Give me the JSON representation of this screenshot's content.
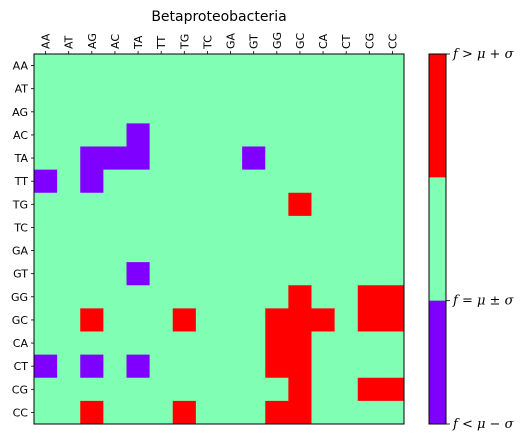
{
  "chart_data": {
    "type": "heatmap",
    "title": "Betaproteobacteria",
    "x_categories": [
      "AA",
      "AT",
      "AG",
      "AC",
      "TA",
      "TT",
      "TG",
      "TC",
      "GA",
      "GT",
      "GG",
      "GC",
      "CA",
      "CT",
      "CG",
      "CC"
    ],
    "y_categories": [
      "AA",
      "AT",
      "AG",
      "AC",
      "TA",
      "TT",
      "TG",
      "TC",
      "GA",
      "GT",
      "GG",
      "GC",
      "CA",
      "CT",
      "CG",
      "CC"
    ],
    "level_codes": {
      "-1": "f < μ − σ",
      "0": "f = μ ± σ",
      "1": "f > μ + σ"
    },
    "colors": {
      "low": "#8000ff",
      "mid": "#80ffb4",
      "high": "#ff0000"
    },
    "values": [
      [
        0,
        0,
        0,
        0,
        0,
        0,
        0,
        0,
        0,
        0,
        0,
        0,
        0,
        0,
        0,
        0
      ],
      [
        0,
        0,
        0,
        0,
        0,
        0,
        0,
        0,
        0,
        0,
        0,
        0,
        0,
        0,
        0,
        0
      ],
      [
        0,
        0,
        0,
        0,
        0,
        0,
        0,
        0,
        0,
        0,
        0,
        0,
        0,
        0,
        0,
        0
      ],
      [
        0,
        0,
        0,
        0,
        -1,
        0,
        0,
        0,
        0,
        0,
        0,
        0,
        0,
        0,
        0,
        0
      ],
      [
        0,
        0,
        -1,
        -1,
        -1,
        0,
        0,
        0,
        0,
        -1,
        0,
        0,
        0,
        0,
        0,
        0
      ],
      [
        -1,
        0,
        -1,
        0,
        0,
        0,
        0,
        0,
        0,
        0,
        0,
        0,
        0,
        0,
        0,
        0
      ],
      [
        0,
        0,
        0,
        0,
        0,
        0,
        0,
        0,
        0,
        0,
        0,
        1,
        0,
        0,
        0,
        0
      ],
      [
        0,
        0,
        0,
        0,
        0,
        0,
        0,
        0,
        0,
        0,
        0,
        0,
        0,
        0,
        0,
        0
      ],
      [
        0,
        0,
        0,
        0,
        0,
        0,
        0,
        0,
        0,
        0,
        0,
        0,
        0,
        0,
        0,
        0
      ],
      [
        0,
        0,
        0,
        0,
        -1,
        0,
        0,
        0,
        0,
        0,
        0,
        0,
        0,
        0,
        0,
        0
      ],
      [
        0,
        0,
        0,
        0,
        0,
        0,
        0,
        0,
        0,
        0,
        0,
        1,
        0,
        0,
        1,
        1
      ],
      [
        0,
        0,
        1,
        0,
        0,
        0,
        1,
        0,
        0,
        0,
        1,
        1,
        1,
        0,
        1,
        1
      ],
      [
        0,
        0,
        0,
        0,
        0,
        0,
        0,
        0,
        0,
        0,
        1,
        1,
        0,
        0,
        0,
        0
      ],
      [
        -1,
        0,
        -1,
        0,
        -1,
        0,
        0,
        0,
        0,
        0,
        1,
        1,
        0,
        0,
        0,
        0
      ],
      [
        0,
        0,
        0,
        0,
        0,
        0,
        0,
        0,
        0,
        0,
        0,
        1,
        0,
        0,
        1,
        1
      ],
      [
        0,
        0,
        1,
        0,
        0,
        0,
        1,
        0,
        0,
        0,
        1,
        1,
        0,
        0,
        0,
        0
      ]
    ],
    "colorbar": {
      "labels_top_to_bottom": [
        "f > μ + σ",
        "f = μ ± σ",
        "f < μ − σ"
      ]
    }
  }
}
